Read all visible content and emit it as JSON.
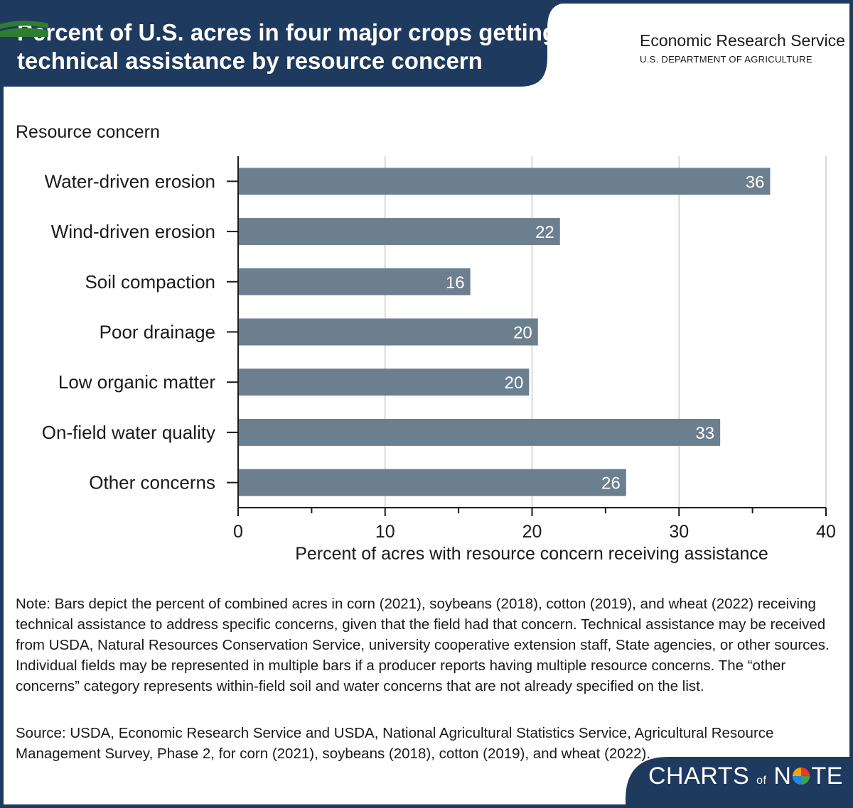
{
  "header": {
    "title": "Percent of U.S. acres in four major crops getting technical assistance by resource concern",
    "agency_abbr": "USDA",
    "agency_name": "Economic Research Service",
    "department": "U.S. DEPARTMENT OF AGRICULTURE"
  },
  "chart_data": {
    "type": "bar",
    "orientation": "horizontal",
    "title": "Percent of U.S. acres in four major crops getting technical assistance by resource concern",
    "ylabel": "Resource concern",
    "xlabel": "Percent of acres with resource concern receiving assistance",
    "categories": [
      "Water-driven erosion",
      "Wind-driven erosion",
      "Soil compaction",
      "Poor drainage",
      "Low organic matter",
      "On-field water quality",
      "Other concerns"
    ],
    "values": [
      36.2,
      21.9,
      15.8,
      20.4,
      19.8,
      32.8,
      26.4
    ],
    "value_labels": [
      "36",
      "22",
      "16",
      "20",
      "20",
      "33",
      "26"
    ],
    "xlim": [
      0,
      40
    ],
    "xticks": [
      0,
      10,
      20,
      30,
      40
    ],
    "grid": true,
    "bar_color": "#6b7f8f"
  },
  "notes": {
    "note": "Note: Bars depict the percent of combined acres in corn (2021), soybeans (2018), cotton (2019), and wheat (2022) receiving technical assistance to address specific concerns, given that the field had that concern. Technical assistance may be received from USDA, Natural Resources Conservation Service, university cooperative extension staff, State agencies, or other sources. Individual fields may be represented in multiple bars if a producer reports having multiple resource concerns. The “other concerns” category represents within-field soil and water concerns that are not already specified on the list.",
    "source": "Source: USDA, Economic Research Service and USDA, National Agricultural Statistics Service, Agricultural Resource Management Survey, Phase 2, for corn (2021), soybeans (2018), cotton (2019), and wheat (2022)."
  },
  "footer": {
    "brand_part1": "CHARTS",
    "brand_part2": "of",
    "brand_part3": "N",
    "brand_part4": "TE"
  },
  "colors": {
    "header_bg": "#1f3a5f",
    "bar": "#6b7f8f",
    "grid": "#cccccc"
  }
}
